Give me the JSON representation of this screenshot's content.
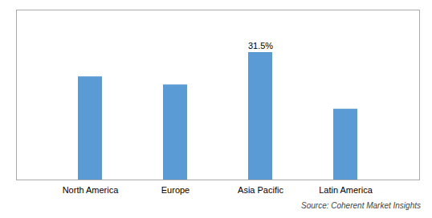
{
  "chart_data": {
    "type": "bar",
    "categories": [
      "North America",
      "Europe",
      "Asia Pacific",
      "Latin America"
    ],
    "values": [
      25.5,
      23.5,
      31.5,
      17.5
    ],
    "color": "#5B9BD5",
    "ylim": [
      0,
      42
    ],
    "data_labels": true,
    "value_labels": [
      null,
      null,
      "31.5%",
      null
    ],
    "tick_labels": "x",
    "grid": false,
    "caption": "Source: Coherent Market Insights"
  }
}
